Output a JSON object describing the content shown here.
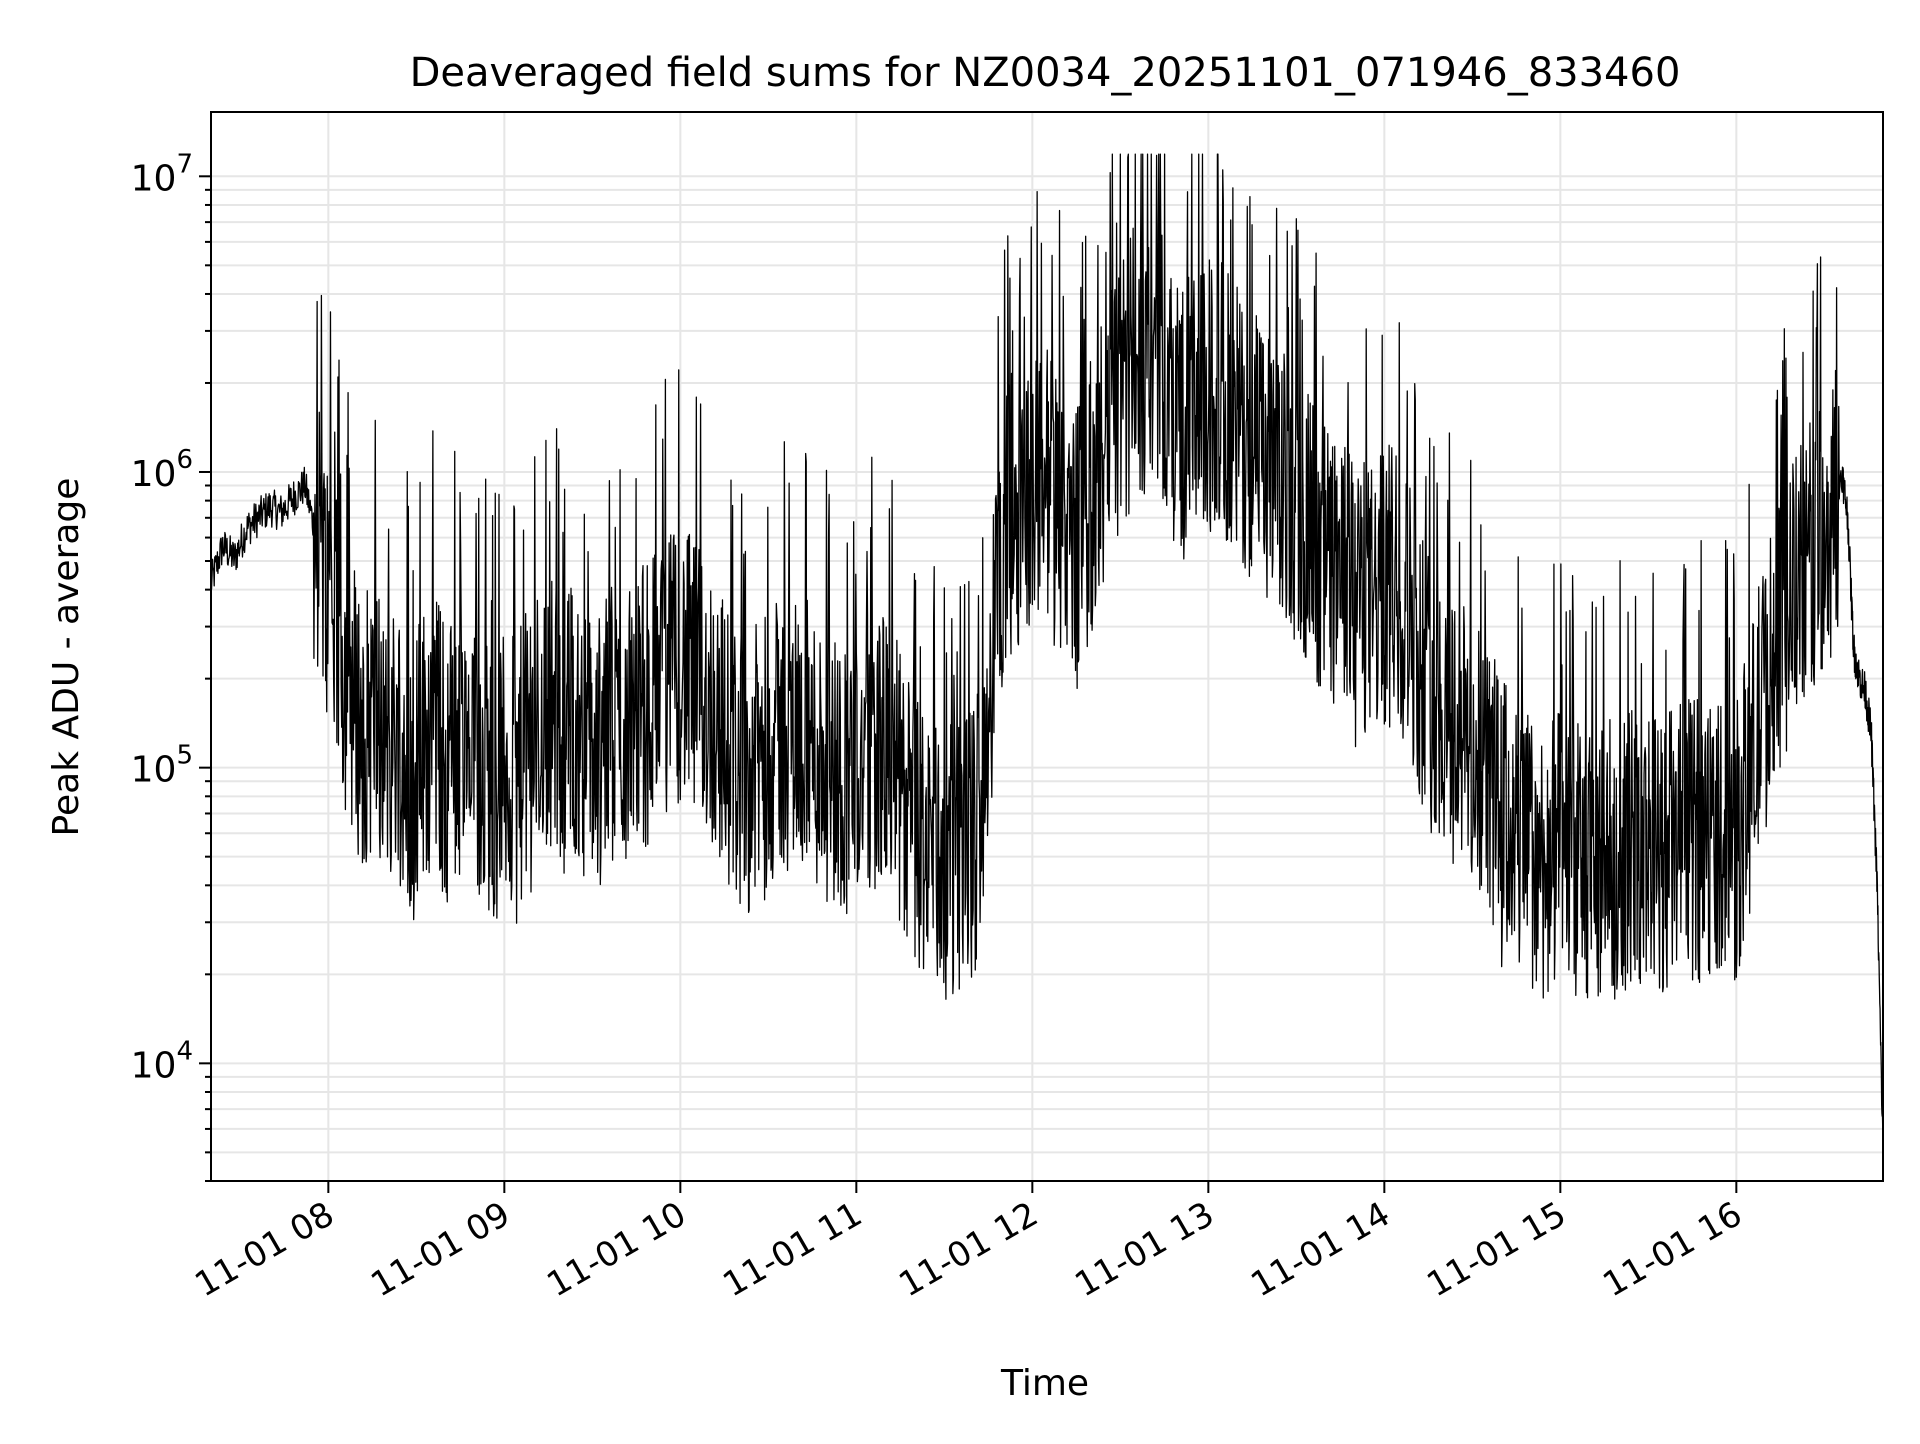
{
  "chart_data": {
    "type": "line",
    "title": "Deaveraged field sums for NZ0034_20251101_071946_833460",
    "xlabel": "Time",
    "ylabel": "Peak ADU - average",
    "yscale": "log",
    "ylim": [
      4000,
      16500000
    ],
    "xlim": [
      "2025-11-01 07:20:00",
      "2025-11-01 16:50:00"
    ],
    "grid": true,
    "x_ticks": [
      {
        "value": "2025-11-01 08:00",
        "label": "11-01 08"
      },
      {
        "value": "2025-11-01 09:00",
        "label": "11-01 09"
      },
      {
        "value": "2025-11-01 10:00",
        "label": "11-01 10"
      },
      {
        "value": "2025-11-01 11:00",
        "label": "11-01 11"
      },
      {
        "value": "2025-11-01 12:00",
        "label": "11-01 12"
      },
      {
        "value": "2025-11-01 13:00",
        "label": "11-01 13"
      },
      {
        "value": "2025-11-01 14:00",
        "label": "11-01 14"
      },
      {
        "value": "2025-11-01 15:00",
        "label": "11-01 15"
      },
      {
        "value": "2025-11-01 16:00",
        "label": "11-01 16"
      }
    ],
    "y_ticks": [
      {
        "value": 10000,
        "base": "10",
        "exp": "4"
      },
      {
        "value": 100000,
        "base": "10",
        "exp": "5"
      },
      {
        "value": 1000000,
        "base": "10",
        "exp": "6"
      },
      {
        "value": 10000000,
        "base": "10",
        "exp": "7"
      }
    ],
    "series": [
      {
        "color": "#000000",
        "points": [
          [
            "07:20",
            420000
          ],
          [
            "07:24",
            560000
          ],
          [
            "07:28",
            510000
          ],
          [
            "07:32",
            640000
          ],
          [
            "07:36",
            700000
          ],
          [
            "07:40",
            760000
          ],
          [
            "07:44",
            730000
          ],
          [
            "07:48",
            820000
          ],
          [
            "07:52",
            900000
          ],
          [
            "07:56",
            600000
          ],
          [
            "08:00",
            380000
          ],
          [
            "08:04",
            240000
          ],
          [
            "08:08",
            180000
          ],
          [
            "08:12",
            130000
          ],
          [
            "08:16",
            160000
          ],
          [
            "08:20",
            110000
          ],
          [
            "08:24",
            140000
          ],
          [
            "08:28",
            95000
          ],
          [
            "08:32",
            120000
          ],
          [
            "08:36",
            150000
          ],
          [
            "08:40",
            100000
          ],
          [
            "08:44",
            130000
          ],
          [
            "08:48",
            90000
          ],
          [
            "08:52",
            110000
          ],
          [
            "08:56",
            85000
          ],
          [
            "09:00",
            100000
          ],
          [
            "09:04",
            90000
          ],
          [
            "09:08",
            120000
          ],
          [
            "09:12",
            140000
          ],
          [
            "09:16",
            160000
          ],
          [
            "09:20",
            130000
          ],
          [
            "09:24",
            150000
          ],
          [
            "09:28",
            120000
          ],
          [
            "09:32",
            110000
          ],
          [
            "09:36",
            140000
          ],
          [
            "09:40",
            130000
          ],
          [
            "09:44",
            150000
          ],
          [
            "09:48",
            170000
          ],
          [
            "09:52",
            200000
          ],
          [
            "09:56",
            210000
          ],
          [
            "10:00",
            230000
          ],
          [
            "10:04",
            200000
          ],
          [
            "10:08",
            180000
          ],
          [
            "10:12",
            150000
          ],
          [
            "10:16",
            120000
          ],
          [
            "10:20",
            100000
          ],
          [
            "10:24",
            95000
          ],
          [
            "10:28",
            110000
          ],
          [
            "10:32",
            120000
          ],
          [
            "10:36",
            130000
          ],
          [
            "10:40",
            140000
          ],
          [
            "10:44",
            120000
          ],
          [
            "10:48",
            110000
          ],
          [
            "10:52",
            100000
          ],
          [
            "10:56",
            95000
          ],
          [
            "11:00",
            100000
          ],
          [
            "11:04",
            110000
          ],
          [
            "11:08",
            120000
          ],
          [
            "11:12",
            100000
          ],
          [
            "11:16",
            80000
          ],
          [
            "11:20",
            60000
          ],
          [
            "11:24",
            55000
          ],
          [
            "11:28",
            50000
          ],
          [
            "11:32",
            48000
          ],
          [
            "11:36",
            52000
          ],
          [
            "11:40",
            55000
          ],
          [
            "11:44",
            120000
          ],
          [
            "11:48",
            400000
          ],
          [
            "11:52",
            700000
          ],
          [
            "11:56",
            800000
          ],
          [
            "12:00",
            900000
          ],
          [
            "12:04",
            1000000
          ],
          [
            "12:08",
            800000
          ],
          [
            "12:12",
            700000
          ],
          [
            "12:16",
            600000
          ],
          [
            "12:20",
            800000
          ],
          [
            "12:24",
            1200000
          ],
          [
            "12:28",
            1600000
          ],
          [
            "12:32",
            2000000
          ],
          [
            "12:36",
            2400000
          ],
          [
            "12:40",
            2600000
          ],
          [
            "12:44",
            2300000
          ],
          [
            "12:48",
            1800000
          ],
          [
            "12:52",
            1600000
          ],
          [
            "12:56",
            1500000
          ],
          [
            "13:00",
            1800000
          ],
          [
            "13:04",
            1900000
          ],
          [
            "13:08",
            1500000
          ],
          [
            "13:12",
            1400000
          ],
          [
            "13:16",
            1200000
          ],
          [
            "13:20",
            1000000
          ],
          [
            "13:24",
            900000
          ],
          [
            "13:28",
            800000
          ],
          [
            "13:32",
            700000
          ],
          [
            "13:36",
            600000
          ],
          [
            "13:40",
            500000
          ],
          [
            "13:44",
            450000
          ],
          [
            "13:48",
            400000
          ],
          [
            "13:52",
            380000
          ],
          [
            "13:56",
            360000
          ],
          [
            "14:00",
            400000
          ],
          [
            "14:04",
            450000
          ],
          [
            "14:08",
            350000
          ],
          [
            "14:12",
            250000
          ],
          [
            "14:16",
            180000
          ],
          [
            "14:20",
            160000
          ],
          [
            "14:24",
            150000
          ],
          [
            "14:28",
            120000
          ],
          [
            "14:32",
            100000
          ],
          [
            "14:36",
            90000
          ],
          [
            "14:40",
            70000
          ],
          [
            "14:44",
            60000
          ],
          [
            "14:48",
            55000
          ],
          [
            "14:52",
            50000
          ],
          [
            "14:56",
            48000
          ],
          [
            "15:00",
            52000
          ],
          [
            "15:04",
            50000
          ],
          [
            "15:08",
            47000
          ],
          [
            "15:12",
            45000
          ],
          [
            "15:16",
            48000
          ],
          [
            "15:20",
            50000
          ],
          [
            "15:24",
            55000
          ],
          [
            "15:28",
            52000
          ],
          [
            "15:32",
            50000
          ],
          [
            "15:36",
            53000
          ],
          [
            "15:40",
            55000
          ],
          [
            "15:44",
            58000
          ],
          [
            "15:48",
            60000
          ],
          [
            "15:52",
            62000
          ],
          [
            "15:56",
            60000
          ],
          [
            "16:00",
            55000
          ],
          [
            "16:04",
            90000
          ],
          [
            "16:08",
            150000
          ],
          [
            "16:12",
            220000
          ],
          [
            "16:16",
            300000
          ],
          [
            "16:20",
            400000
          ],
          [
            "16:24",
            480000
          ],
          [
            "16:28",
            550000
          ],
          [
            "16:32",
            650000
          ],
          [
            "16:36",
            1000000
          ],
          [
            "16:38",
            700000
          ],
          [
            "16:40",
            250000
          ],
          [
            "16:42",
            200000
          ],
          [
            "16:44",
            180000
          ],
          [
            "16:46",
            130000
          ],
          [
            "16:48",
            40000
          ],
          [
            "16:50",
            5000
          ]
        ]
      }
    ]
  }
}
